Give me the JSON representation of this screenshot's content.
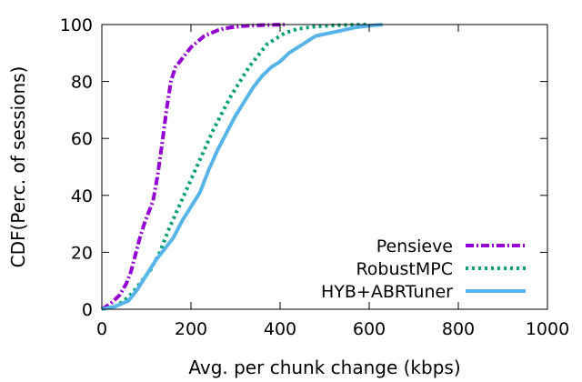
{
  "chart_data": {
    "type": "line",
    "xlabel": "Avg. per chunk change (kbps)",
    "ylabel": "CDF(Perc. of sessions)",
    "xlim": [
      0,
      1000
    ],
    "ylim": [
      0,
      100
    ],
    "x_ticks": [
      0,
      200,
      400,
      600,
      800,
      1000
    ],
    "y_ticks": [
      0,
      20,
      40,
      60,
      80,
      100
    ],
    "grid": false,
    "legend_position": "bottom-right",
    "series": [
      {
        "name": "Pensieve",
        "color": "#9400d3",
        "style": "dash-dot",
        "x": [
          0,
          20,
          40,
          55,
          65,
          75,
          85,
          95,
          105,
          115,
          125,
          135,
          145,
          155,
          165,
          175,
          185,
          200,
          215,
          230,
          245,
          260,
          275,
          290,
          310,
          330,
          360,
          390,
          410
        ],
        "y": [
          0,
          2,
          5,
          9,
          13,
          19,
          25,
          30,
          34,
          38,
          47,
          58,
          70,
          80,
          85,
          87,
          89,
          92,
          94,
          96,
          97,
          98,
          98.6,
          99,
          99.4,
          99.6,
          99.8,
          99.9,
          100
        ]
      },
      {
        "name": "RobustMPC",
        "color": "#009e73",
        "style": "dotted",
        "x": [
          0,
          30,
          50,
          70,
          90,
          110,
          130,
          150,
          170,
          190,
          210,
          230,
          250,
          270,
          290,
          310,
          330,
          350,
          370,
          390,
          410,
          440,
          480,
          520,
          560,
          590,
          600
        ],
        "y": [
          0,
          1,
          3,
          6,
          10,
          14,
          20,
          28,
          35,
          42,
          49,
          56,
          63,
          69,
          75,
          80,
          85,
          89,
          93,
          95,
          97,
          98.5,
          99.3,
          99.7,
          99.9,
          100,
          100
        ]
      },
      {
        "name": "HYB+ABRTuner",
        "color": "#56b4e9",
        "style": "solid",
        "x": [
          0,
          30,
          60,
          80,
          100,
          120,
          140,
          160,
          180,
          200,
          220,
          240,
          260,
          280,
          300,
          320,
          340,
          360,
          380,
          400,
          420,
          440,
          460,
          480,
          510,
          540,
          570,
          600,
          630
        ],
        "y": [
          0,
          1,
          3,
          7,
          12,
          17,
          21,
          25,
          31,
          36,
          41,
          49,
          56,
          62,
          68,
          73,
          78,
          82,
          85,
          87,
          90,
          92,
          94,
          96,
          97,
          98,
          99,
          99.6,
          100
        ]
      }
    ]
  }
}
